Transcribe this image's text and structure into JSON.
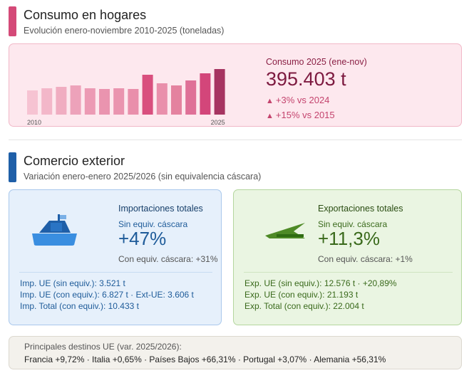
{
  "consumo": {
    "title": "Consumo en hogares",
    "subtitle": "Evolución enero-noviembre 2010-2025 (toneladas)",
    "accent_color": "#d44a78",
    "chart_data": {
      "type": "bar",
      "categories": [
        "2010",
        "2011",
        "2012",
        "2013",
        "2014",
        "2015",
        "2016",
        "2017",
        "2018",
        "2019",
        "2020",
        "2021",
        "2022",
        "2023",
        "2024",
        "2025"
      ],
      "values": [
        34,
        37,
        39,
        41,
        37,
        36,
        37,
        36,
        56,
        44,
        41,
        48,
        58,
        64,
        null,
        null
      ],
      "x_tick_labels": [
        "2010",
        "2025"
      ],
      "note": "relative bar heights only; axis not printed"
    },
    "kpi_label": "Consumo 2025 (ene-nov)",
    "kpi_value": "395.403 t",
    "delta_1": "+3% vs 2024",
    "delta_2": "+15% vs 2015",
    "delta_icon": "triangle-up-icon"
  },
  "comercio": {
    "title": "Comercio exterior",
    "subtitle": "Variación enero-enero 2025/2026 (sin equivalencia cáscara)",
    "accent_color": "#1f5fa8"
  },
  "importaciones": {
    "title": "Importaciones totales",
    "small_label": "Sin equiv. cáscara",
    "big_value": "+47%",
    "note": "Con equiv. cáscara: +31%",
    "icon": "ship-icon",
    "lines": [
      "Imp. UE (sin equiv.): 3.521 t",
      "Imp. UE (con equiv.): 6.827 t · Ext-UE: 3.606 t",
      "Imp. Total (con equiv.): 10.433 t"
    ]
  },
  "exportaciones": {
    "title": "Exportaciones totales",
    "small_label": "Sin equiv. cáscara",
    "big_value": "+11,3%",
    "note": "Con equiv. cáscara: +1%",
    "icon": "plane-icon",
    "lines": [
      "Exp. UE (sin equiv.): 12.576 t · +20,89%",
      "Exp. UE (con equiv.): 21.193 t",
      "Exp. Total (con equiv.): 22.004 t"
    ]
  },
  "destinos": {
    "title": "Principales destinos UE (var. 2025/2026):",
    "list": "Francia +9,72% · Italia +0,65% · Países Bajos +66,31% · Portugal +3,07% · Alemania +56,31%"
  }
}
